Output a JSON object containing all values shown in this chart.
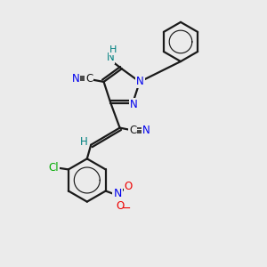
{
  "background_color": "#ebebeb",
  "bond_color": "#1a1a1a",
  "atom_colors": {
    "N": "#0000ee",
    "O": "#ee0000",
    "Cl": "#00aa00",
    "C": "#1a1a1a",
    "H": "#008080",
    "NH": "#008080"
  },
  "figsize": [
    3.0,
    3.0
  ],
  "dpi": 100,
  "xlim": [
    0,
    10
  ],
  "ylim": [
    0,
    10
  ]
}
